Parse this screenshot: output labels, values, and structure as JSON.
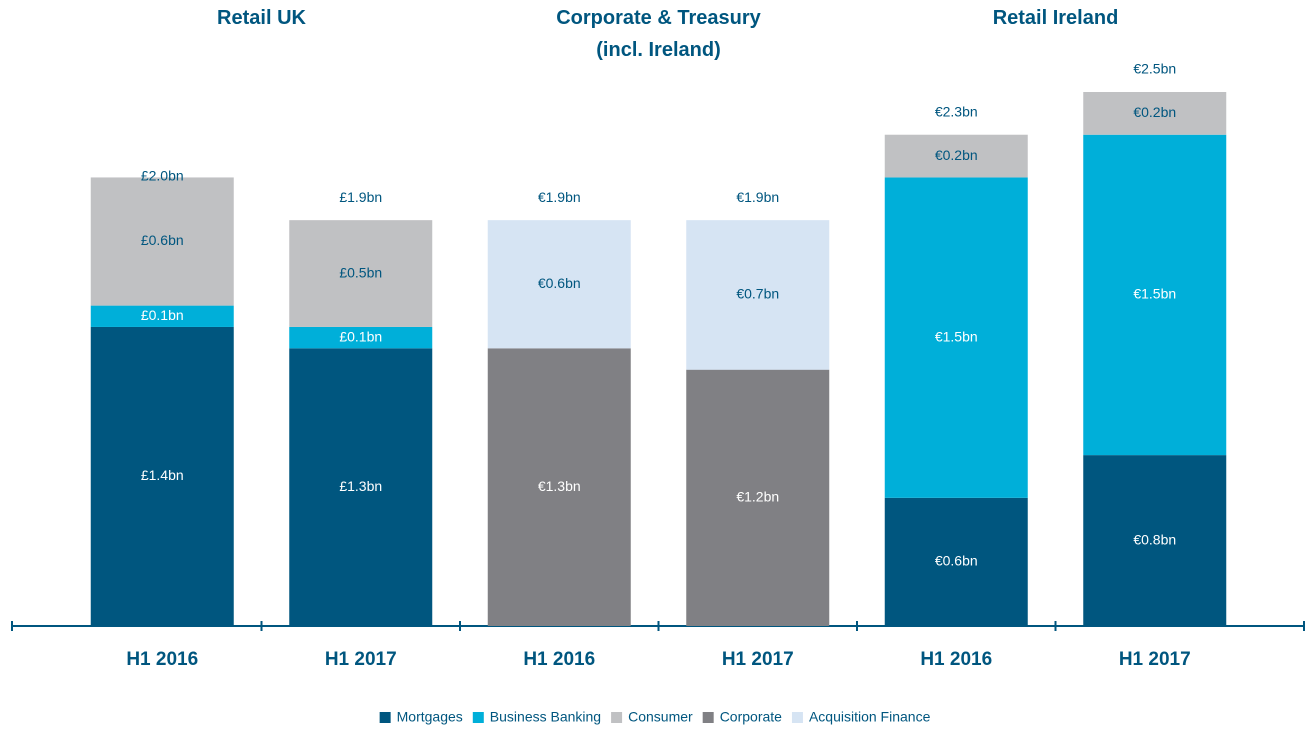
{
  "chart_data": {
    "type": "stacked_bar",
    "groups": [
      {
        "title": "Retail UK",
        "categories": [
          "H1 2016",
          "H1 2017"
        ]
      },
      {
        "title": "Corporate & Treasury\n(incl. Ireland)",
        "categories": [
          "H1 2016",
          "H1 2017"
        ]
      },
      {
        "title": "Retail Ireland",
        "categories": [
          "H1 2016",
          "H1 2017"
        ]
      }
    ],
    "series": [
      {
        "name": "Mortgages",
        "color": "#00567f",
        "label_color": "#ffffff",
        "values": [
          1.4,
          1.3,
          null,
          null,
          0.6,
          0.8
        ],
        "value_labels": [
          "£1.4bn",
          "£1.3bn",
          null,
          null,
          "€0.6bn",
          "€0.8bn"
        ]
      },
      {
        "name": "Business Banking",
        "color": "#00afd9",
        "label_color": "#ffffff",
        "values": [
          0.1,
          0.1,
          null,
          null,
          1.5,
          1.5
        ],
        "value_labels": [
          "£0.1bn",
          "£0.1bn",
          null,
          null,
          "€1.5bn",
          "€1.5bn"
        ]
      },
      {
        "name": "Consumer",
        "color": "#c0c1c3",
        "label_color": "#00567f",
        "values": [
          0.6,
          0.5,
          null,
          null,
          0.2,
          0.2
        ],
        "value_labels": [
          "£0.6bn",
          "£0.5bn",
          null,
          null,
          "€0.2bn",
          "€0.2bn"
        ]
      },
      {
        "name": "Corporate",
        "color": "#808084",
        "label_color": "#ffffff",
        "values": [
          null,
          null,
          1.3,
          1.2,
          null,
          null
        ],
        "value_labels": [
          null,
          null,
          "€1.3bn",
          "€1.2bn",
          null,
          null
        ]
      },
      {
        "name": "Acquisition Finance",
        "color": "#d6e4f3",
        "label_color": "#00567f",
        "values": [
          null,
          null,
          0.6,
          0.7,
          null,
          null
        ],
        "value_labels": [
          null,
          null,
          "€0.6bn",
          "€0.7bn",
          null,
          null
        ]
      }
    ],
    "totals": {
      "values": [
        2.0,
        1.9,
        1.9,
        1.9,
        2.3,
        2.5
      ],
      "value_labels": [
        "£2.0bn",
        "£1.9bn",
        "€1.9bn",
        "€1.9bn",
        "€2.3bn",
        "€2.5bn"
      ]
    },
    "ylim": [
      0,
      2.5
    ]
  }
}
